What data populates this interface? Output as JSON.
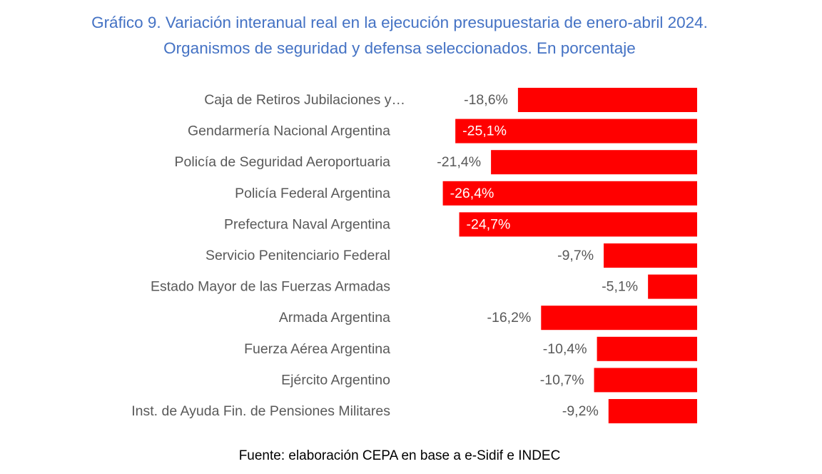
{
  "title_line1": "Gráfico 9. Variación interanual real en la ejecución presupuestaria de enero-abril 2024.",
  "title_line2": "Organismos de seguridad y defensa seleccionados. En porcentaje",
  "source": "Fuente: elaboración CEPA en base a e-Sidif e INDEC",
  "colors": {
    "bar": "#FF0000",
    "title": "#4472C4",
    "category_label": "#595959",
    "value_label_outside": "#595959",
    "value_label_inside": "#FFFFFF"
  },
  "chart_data": {
    "type": "bar",
    "orientation": "horizontal",
    "title": "Gráfico 9. Variación interanual real en la ejecución presupuestaria de enero-abril 2024. Organismos de seguridad y defensa seleccionados. En porcentaje",
    "xlabel": "",
    "ylabel": "",
    "categories": [
      "Caja de Retiros Jubilaciones y…",
      "Gendarmería Nacional Argentina",
      "Policía de Seguridad Aeroportuaria",
      "Policía Federal Argentina",
      "Prefectura Naval Argentina",
      "Servicio Penitenciario Federal",
      "Estado Mayor de las Fuerzas Armadas",
      "Armada Argentina",
      "Fuerza Aérea Argentina",
      "Ejército Argentino",
      "Inst. de Ayuda Fin. de Pensiones Militares"
    ],
    "values": [
      -18.6,
      -25.1,
      -21.4,
      -26.4,
      -24.7,
      -9.7,
      -5.1,
      -16.2,
      -10.4,
      -10.7,
      -9.2
    ],
    "value_labels": [
      "-18,6%",
      "-25,1%",
      "-21,4%",
      "-26,4%",
      "-24,7%",
      "-9,7%",
      "-5,1%",
      "-16,2%",
      "-10,4%",
      "-10,7%",
      "-9,2%"
    ],
    "label_inside": [
      false,
      true,
      false,
      true,
      true,
      false,
      false,
      false,
      false,
      false,
      false
    ],
    "xlim": [
      -26.4,
      0
    ],
    "grid": false,
    "legend": "none"
  }
}
